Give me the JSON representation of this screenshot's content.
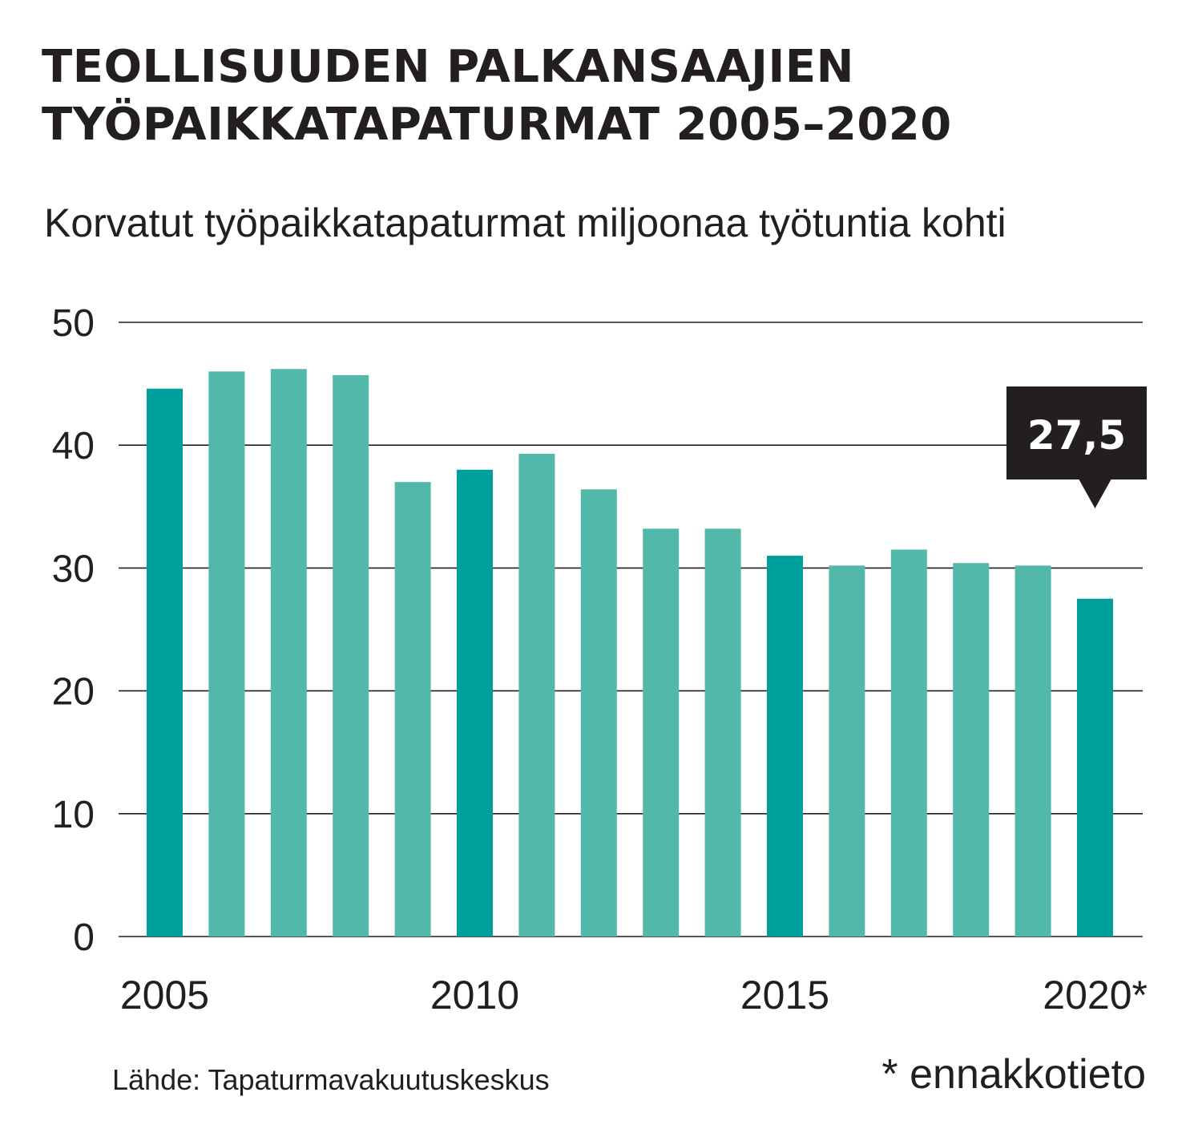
{
  "header": {
    "title_line1": "TEOLLISUUDEN PALKANSAAJIEN",
    "title_line2": "TYÖPAIKKATAPATURMAT 2005–2020",
    "subtitle": "Korvatut työpaikkatapaturmat miljoonaa työtuntia kohti"
  },
  "footer": {
    "source": "Lähde: Tapaturmavakuutuskeskus",
    "footnote": "* ennakkotieto"
  },
  "colors": {
    "highlight_bar": "#009e9c",
    "regular_bar": "#52b9aa",
    "gridline": "#231f20",
    "callout_bg": "#231f20",
    "callout_text": "#ffffff",
    "text": "#231f20"
  },
  "chart_data": {
    "type": "bar",
    "categories": [
      "2005",
      "2006",
      "2007",
      "2008",
      "2009",
      "2010",
      "2011",
      "2012",
      "2013",
      "2014",
      "2015",
      "2016",
      "2017",
      "2018",
      "2019",
      "2020*"
    ],
    "values": [
      44.6,
      46.0,
      46.2,
      45.7,
      37.0,
      38.0,
      39.3,
      36.4,
      33.2,
      33.2,
      31.0,
      30.2,
      31.5,
      30.4,
      30.2,
      27.5
    ],
    "highlighted": [
      "2005",
      "2010",
      "2015",
      "2020*"
    ],
    "x_tick_labels": [
      "2005",
      "2010",
      "2015",
      "2020*"
    ],
    "y_ticks": [
      0,
      10,
      20,
      30,
      40,
      50
    ],
    "ylim": [
      0,
      50
    ],
    "grid": true,
    "xlabel": "",
    "ylabel": "",
    "callout": {
      "category": "2020*",
      "label": "27,5"
    }
  }
}
